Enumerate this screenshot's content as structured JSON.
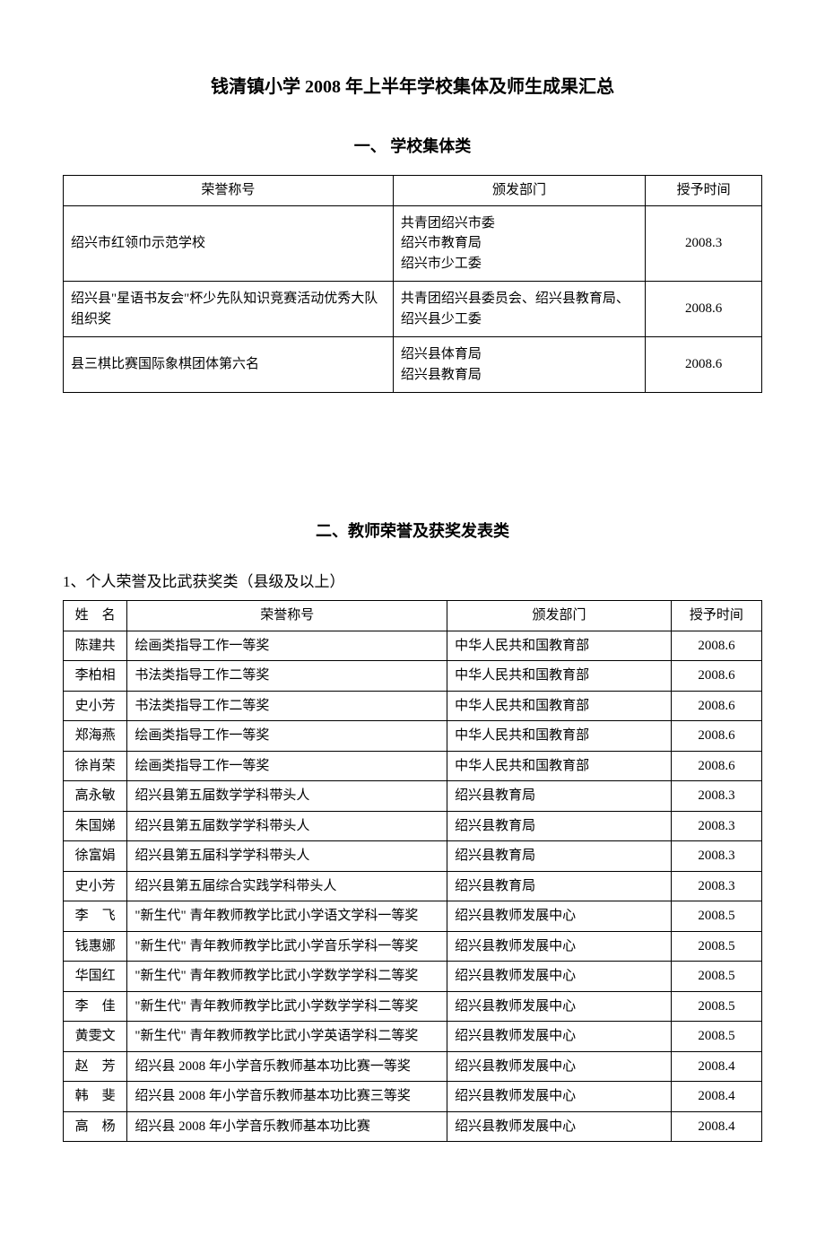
{
  "main_title": "钱清镇小学 2008 年上半年学校集体及师生成果汇总",
  "section1_title": "一、 学校集体类",
  "section2_title": "二、教师荣誉及获奖发表类",
  "sub_title1": "1、个人荣誉及比武获奖类（县级及以上）",
  "table1": {
    "headers": [
      "荣誉称号",
      "颁发部门",
      "授予时间"
    ],
    "rows": [
      {
        "honor": "绍兴市红领巾示范学校",
        "dept": "共青团绍兴市委\n绍兴市教育局\n绍兴市少工委",
        "date": "2008.3"
      },
      {
        "honor": "绍兴县\"星语书友会\"杯少先队知识竞赛活动优秀大队组织奖",
        "dept": "共青团绍兴县委员会、绍兴县教育局、绍兴县少工委",
        "date": "2008.6"
      },
      {
        "honor": "县三棋比赛国际象棋团体第六名",
        "dept": "绍兴县体育局\n绍兴县教育局",
        "date": "2008.6"
      }
    ]
  },
  "table2": {
    "headers": [
      "姓　名",
      "荣誉称号",
      "颁发部门",
      "授予时间"
    ],
    "rows": [
      {
        "name": "陈建共",
        "honor": "绘画类指导工作一等奖",
        "dept": "中华人民共和国教育部",
        "date": "2008.6"
      },
      {
        "name": "李柏相",
        "honor": "书法类指导工作二等奖",
        "dept": "中华人民共和国教育部",
        "date": "2008.6"
      },
      {
        "name": "史小芳",
        "honor": "书法类指导工作二等奖",
        "dept": "中华人民共和国教育部",
        "date": "2008.6"
      },
      {
        "name": "郑海燕",
        "honor": "绘画类指导工作一等奖",
        "dept": "中华人民共和国教育部",
        "date": "2008.6"
      },
      {
        "name": "徐肖荣",
        "honor": "绘画类指导工作一等奖",
        "dept": "中华人民共和国教育部",
        "date": "2008.6"
      },
      {
        "name": "高永敏",
        "honor": "绍兴县第五届数学学科带头人",
        "dept": "绍兴县教育局",
        "date": "2008.3"
      },
      {
        "name": "朱国娣",
        "honor": "绍兴县第五届数学学科带头人",
        "dept": "绍兴县教育局",
        "date": "2008.3"
      },
      {
        "name": "徐富娟",
        "honor": "绍兴县第五届科学学科带头人",
        "dept": "绍兴县教育局",
        "date": "2008.3"
      },
      {
        "name": "史小芳",
        "honor": "绍兴县第五届综合实践学科带头人",
        "dept": "绍兴县教育局",
        "date": "2008.3"
      },
      {
        "name": "李　飞",
        "honor": "\"新生代\" 青年教师教学比武小学语文学科一等奖",
        "dept": "绍兴县教师发展中心",
        "date": "2008.5"
      },
      {
        "name": "钱惠娜",
        "honor": "\"新生代\" 青年教师教学比武小学音乐学科一等奖",
        "dept": "绍兴县教师发展中心",
        "date": "2008.5"
      },
      {
        "name": "华国红",
        "honor": "\"新生代\" 青年教师教学比武小学数学学科二等奖",
        "dept": "绍兴县教师发展中心",
        "date": "2008.5"
      },
      {
        "name": "李　佳",
        "honor": "\"新生代\" 青年教师教学比武小学数学学科二等奖",
        "dept": "绍兴县教师发展中心",
        "date": "2008.5"
      },
      {
        "name": "黄雯文",
        "honor": "\"新生代\" 青年教师教学比武小学英语学科二等奖",
        "dept": "绍兴县教师发展中心",
        "date": "2008.5"
      },
      {
        "name": "赵　芳",
        "honor": "绍兴县 2008 年小学音乐教师基本功比赛一等奖",
        "dept": "绍兴县教师发展中心",
        "date": "2008.4"
      },
      {
        "name": "韩　斐",
        "honor": "绍兴县 2008 年小学音乐教师基本功比赛三等奖",
        "dept": "绍兴县教师发展中心",
        "date": "2008.4"
      },
      {
        "name": "高　杨",
        "honor": "绍兴县 2008 年小学音乐教师基本功比赛",
        "dept": "绍兴县教师发展中心",
        "date": "2008.4"
      }
    ]
  }
}
